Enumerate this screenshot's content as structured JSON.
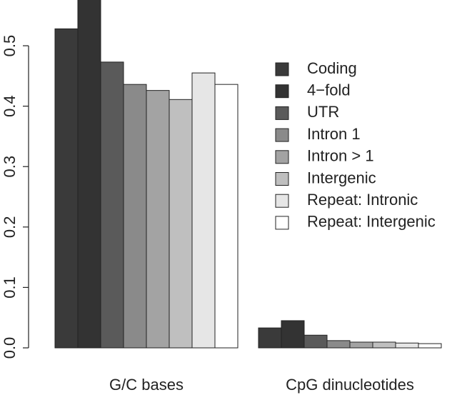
{
  "chart_data": {
    "type": "bar",
    "categories": [
      "G/C bases",
      "CpG dinucleotides"
    ],
    "series": [
      {
        "name": "Coding",
        "color": "#3a3a3a",
        "values": [
          0.528,
          0.033
        ]
      },
      {
        "name": "4−fold",
        "color": "#333333",
        "values": [
          0.58,
          0.045
        ]
      },
      {
        "name": "UTR",
        "color": "#5a5a5a",
        "values": [
          0.473,
          0.021
        ]
      },
      {
        "name": "Intron 1",
        "color": "#8a8a8a",
        "values": [
          0.436,
          0.012
        ]
      },
      {
        "name": "Intron > 1",
        "color": "#a3a3a3",
        "values": [
          0.426,
          0.0095
        ]
      },
      {
        "name": "Intergenic",
        "color": "#bfbfbf",
        "values": [
          0.411,
          0.0095
        ]
      },
      {
        "name": "Repeat: Intronic",
        "color": "#e6e6e6",
        "values": [
          0.455,
          0.008
        ]
      },
      {
        "name": "Repeat: Intergenic",
        "color": "#ffffff",
        "values": [
          0.436,
          0.007
        ]
      }
    ],
    "ylim": [
      0,
      0.5757
    ],
    "yticks": [
      {
        "value": 0,
        "label": "0.0"
      },
      0.1,
      0.2,
      0.3,
      0.4,
      0.5
    ],
    "legend": "right"
  }
}
